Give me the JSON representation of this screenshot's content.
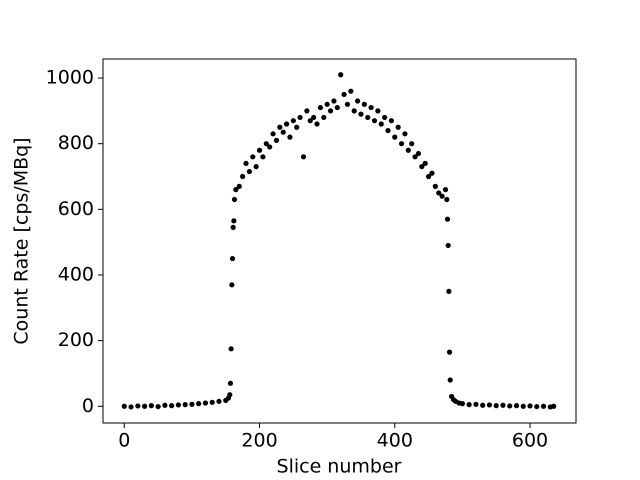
{
  "chart_data": {
    "type": "scatter",
    "x_label": "Slice number",
    "y_label": "Count Rate [cps/MBq]",
    "color": "#000000",
    "x": [
      0,
      10,
      20,
      30,
      40,
      50,
      60,
      70,
      80,
      90,
      100,
      110,
      120,
      130,
      140,
      150,
      154,
      156,
      157,
      158,
      159,
      160,
      161,
      162,
      163,
      165,
      170,
      175,
      180,
      185,
      190,
      195,
      200,
      205,
      210,
      215,
      220,
      225,
      230,
      235,
      240,
      245,
      250,
      255,
      260,
      265,
      270,
      275,
      280,
      285,
      290,
      295,
      300,
      305,
      310,
      315,
      320,
      325,
      330,
      335,
      340,
      345,
      350,
      355,
      360,
      365,
      370,
      375,
      380,
      385,
      390,
      395,
      400,
      405,
      410,
      415,
      420,
      425,
      430,
      435,
      440,
      445,
      450,
      455,
      460,
      465,
      470,
      475,
      477,
      478,
      479,
      480,
      481,
      482,
      484,
      487,
      490,
      495,
      500,
      510,
      520,
      530,
      540,
      550,
      560,
      570,
      580,
      590,
      600,
      610,
      620,
      630,
      635
    ],
    "values": [
      0,
      -2,
      1,
      0,
      2,
      -1,
      3,
      2,
      4,
      5,
      6,
      8,
      10,
      12,
      15,
      18,
      25,
      35,
      70,
      175,
      370,
      450,
      545,
      565,
      630,
      660,
      670,
      700,
      740,
      715,
      760,
      730,
      780,
      760,
      800,
      790,
      830,
      810,
      850,
      835,
      860,
      820,
      870,
      850,
      880,
      760,
      900,
      870,
      880,
      860,
      910,
      880,
      920,
      900,
      930,
      910,
      1010,
      950,
      920,
      960,
      900,
      930,
      890,
      920,
      880,
      910,
      870,
      900,
      860,
      880,
      840,
      870,
      820,
      850,
      800,
      830,
      780,
      800,
      760,
      770,
      730,
      740,
      700,
      710,
      670,
      650,
      640,
      660,
      630,
      570,
      490,
      350,
      165,
      80,
      30,
      20,
      15,
      10,
      8,
      5,
      6,
      3,
      4,
      2,
      3,
      1,
      2,
      0,
      1,
      -1,
      0,
      -2,
      0
    ],
    "xlim": [
      -31.5,
      668
    ],
    "ylim": [
      -51,
      1058
    ],
    "xticks": [
      0,
      200,
      400,
      600
    ],
    "yticks": [
      0,
      200,
      400,
      600,
      800,
      1000
    ]
  }
}
